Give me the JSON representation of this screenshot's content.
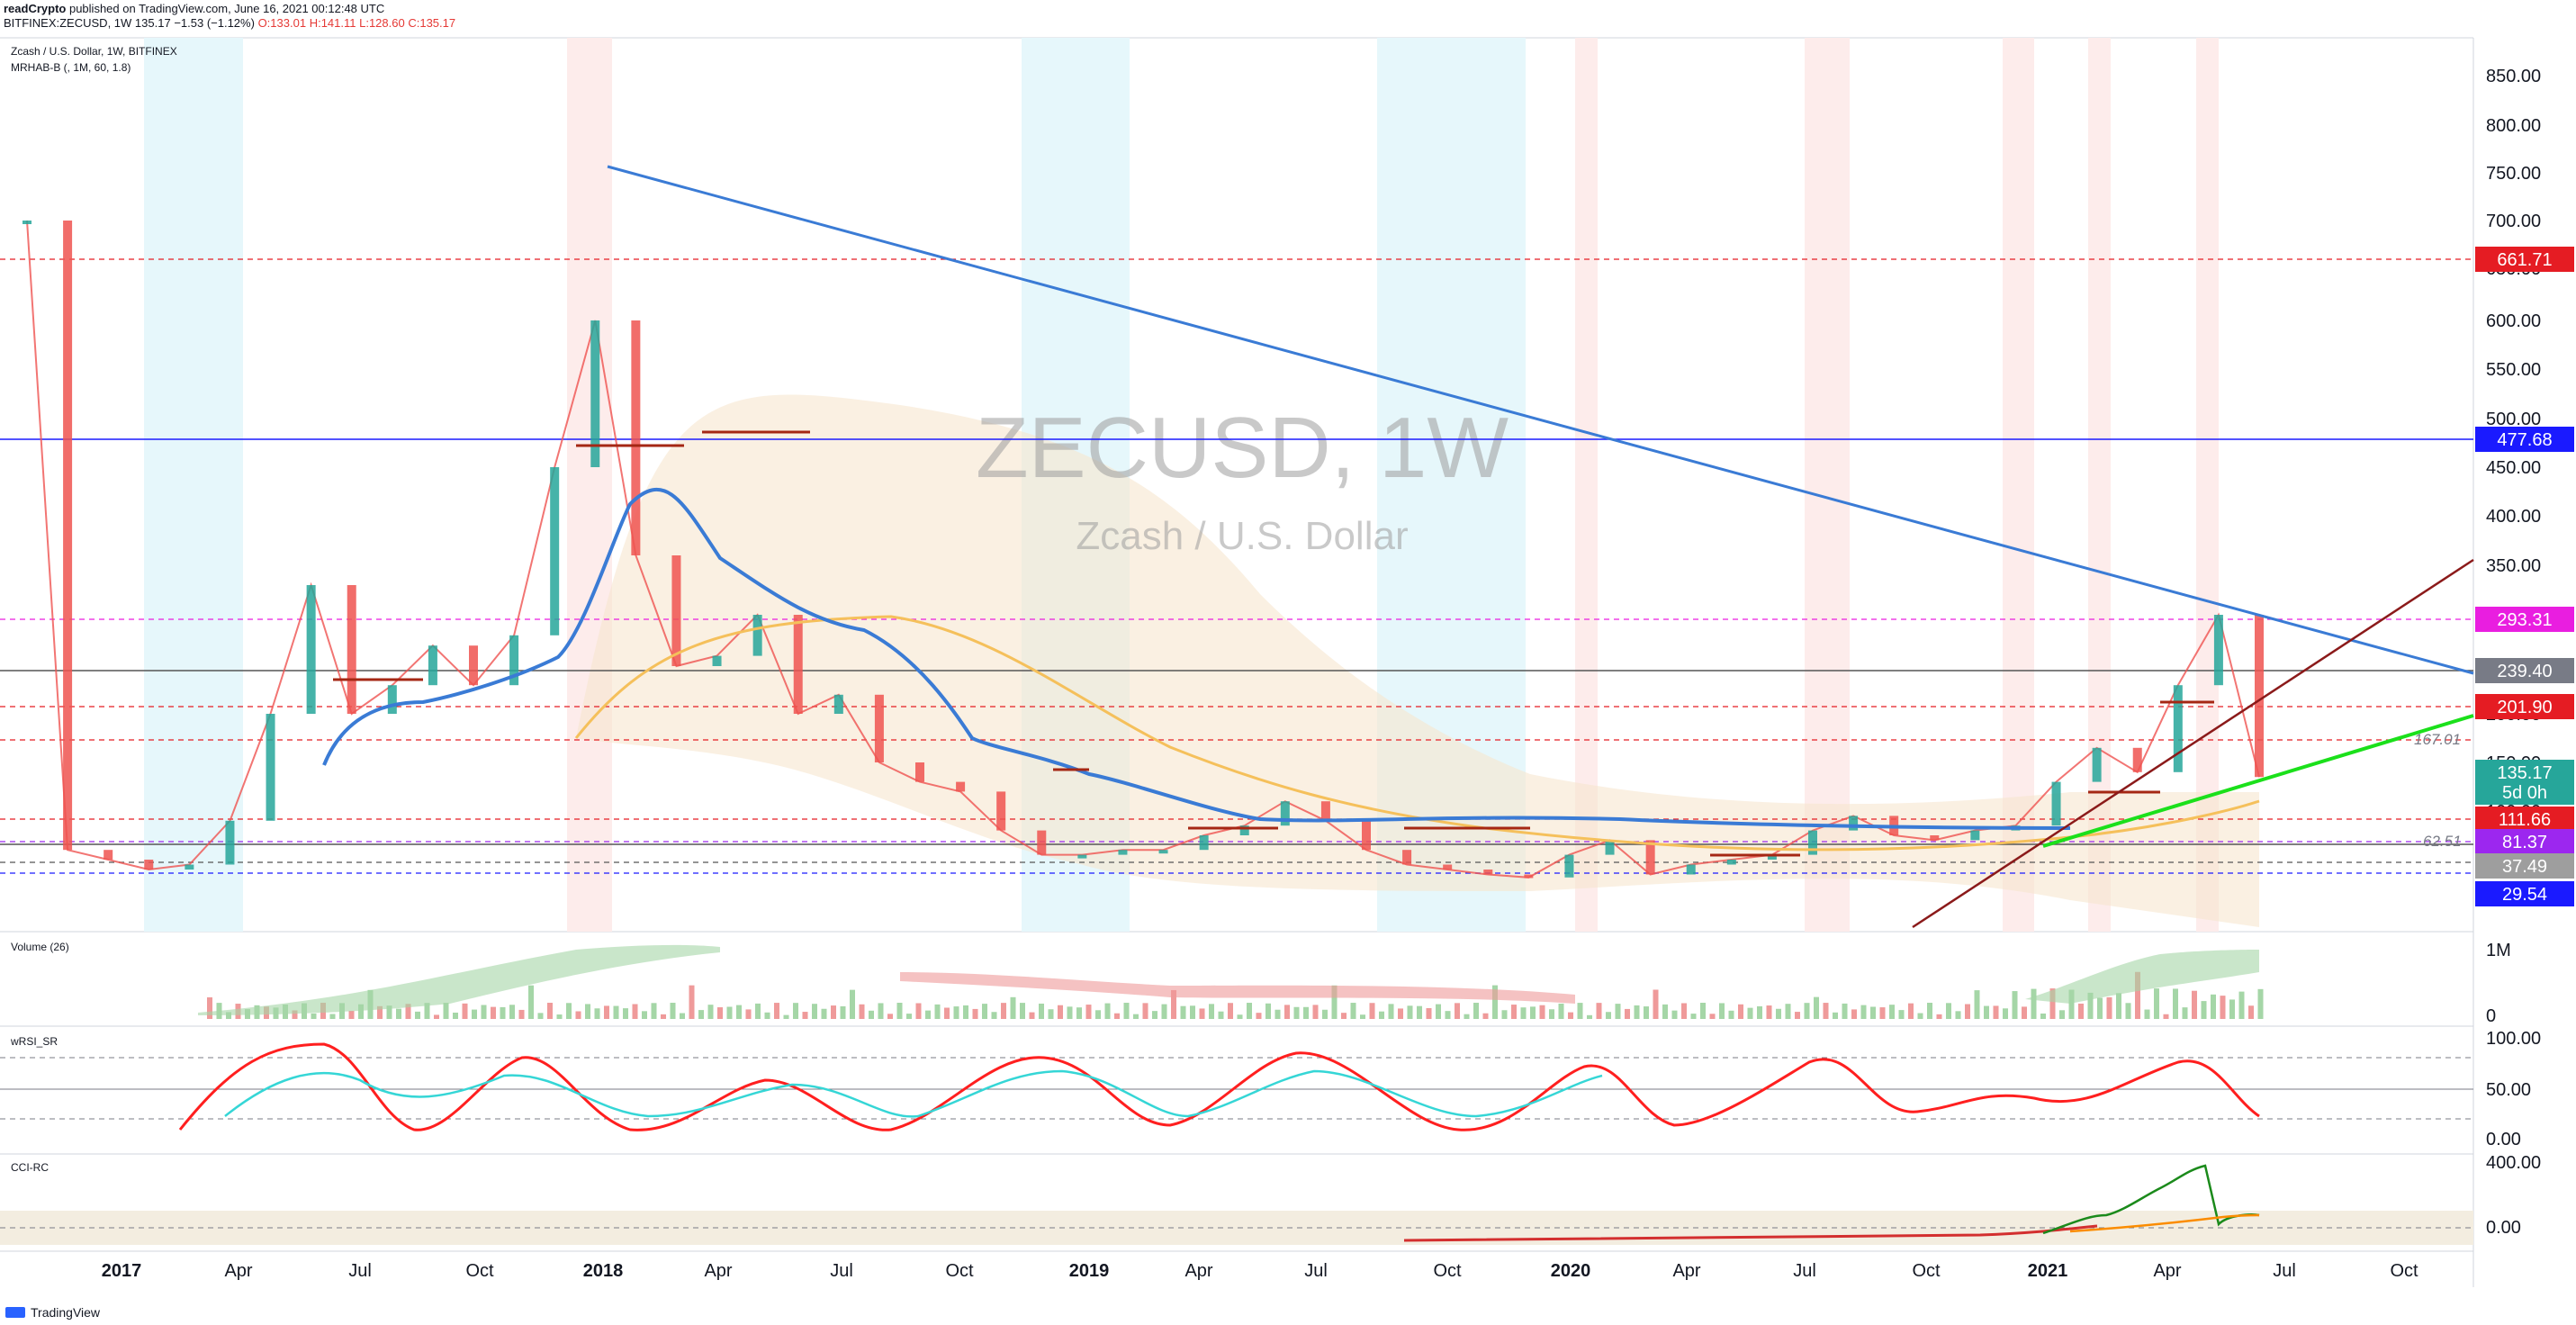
{
  "header": {
    "line1_author": "readCrypto",
    "line1_rest": " published on TradingView.com, June 16, 2021 00:12:48 UTC",
    "line2_symbol": "BITFINEX:ZECUSD, 1W",
    "line2_close": "135.17",
    "line2_change": "−1.53 (−1.12%)",
    "ohlc": {
      "o": "O:133.01",
      "h": "H:141.11",
      "l": "L:128.60",
      "c": "C:135.17"
    }
  },
  "legend": {
    "title": "Zcash / U.S. Dollar, 1W, BITFINEX",
    "indicator": "MRHAB-B (, 1M, 60, 1.8)"
  },
  "watermark": {
    "symbol": "ZECUSD, 1W",
    "name": "Zcash / U.S. Dollar"
  },
  "panes": {
    "volume": "Volume (26)",
    "wrsi": "wRSI_SR",
    "cci": "CCI-RC"
  },
  "footer": {
    "brand": "TradingView"
  },
  "colors": {
    "up": "#26a69a",
    "down": "#ef5350",
    "blue_line": "#3a7bd5",
    "red_line": "#d32f2f",
    "green_line": "#1be01b",
    "orange_line": "#f5c05b",
    "dark_red": "#8b1a1a"
  },
  "chart_data": {
    "type": "line",
    "title": "ZECUSD, 1W",
    "subtitle": "Zcash / U.S. Dollar",
    "x_ticks": [
      "2017",
      "Apr",
      "Jul",
      "Oct",
      "2018",
      "Apr",
      "Jul",
      "Oct",
      "2019",
      "Apr",
      "Jul",
      "Oct",
      "2020",
      "Apr",
      "Jul",
      "Oct",
      "2021",
      "Apr",
      "Jul",
      "Oct"
    ],
    "y_ticks": [
      "850.00",
      "800.00",
      "750.00",
      "700.00",
      "650.00",
      "600.00",
      "550.00",
      "500.00",
      "450.00",
      "400.00",
      "350.00",
      "300.00",
      "250.00",
      "200.00",
      "150.00",
      "100.00",
      "50.00"
    ],
    "price_labels": [
      {
        "value": "661.71",
        "color": "#e51c23"
      },
      {
        "value": "477.68",
        "color": "#1a1aff"
      },
      {
        "value": "293.31",
        "color": "#e91ee0"
      },
      {
        "value": "239.40",
        "color": "#787b86"
      },
      {
        "value": "201.90",
        "color": "#e51c23"
      },
      {
        "value": "135.17",
        "color": "#26a69a"
      },
      {
        "value": "5d 0h",
        "color": "#26a69a"
      },
      {
        "value": "111.66",
        "color": "#e51c23"
      },
      {
        "value": "81.37",
        "color": "#9c27ef"
      },
      {
        "value": "37.49",
        "color": "#9e9e9e"
      },
      {
        "value": "29.54",
        "color": "#1a1aff"
      }
    ],
    "inline_labels": [
      "167.01",
      "62.51"
    ],
    "horizontal_levels": [
      661.71,
      477.68,
      293.31,
      239.4,
      201.9,
      167.01,
      111.66,
      81.37,
      62.51,
      37.49,
      29.54
    ],
    "series": [
      {
        "values": [
          [
            "2016-11",
            700
          ],
          [
            "2016-12",
            60
          ],
          [
            "2017-01",
            50
          ],
          [
            "2017-02",
            40
          ],
          [
            "2017-03",
            45
          ],
          [
            "2017-04",
            90
          ],
          [
            "2017-05",
            200
          ],
          [
            "2017-06",
            330
          ],
          [
            "2017-07",
            200
          ],
          [
            "2017-08",
            230
          ],
          [
            "2017-09",
            270
          ],
          [
            "2017-10",
            230
          ],
          [
            "2017-11",
            280
          ],
          [
            "2017-12",
            450
          ],
          [
            "2018-01",
            600
          ],
          [
            "2018-02",
            360
          ],
          [
            "2018-03",
            250
          ],
          [
            "2018-04",
            260
          ],
          [
            "2018-05",
            300
          ],
          [
            "2018-06",
            200
          ],
          [
            "2018-07",
            220
          ],
          [
            "2018-08",
            150
          ],
          [
            "2018-09",
            130
          ],
          [
            "2018-10",
            120
          ],
          [
            "2018-11",
            80
          ],
          [
            "2018-12",
            55
          ],
          [
            "2019-01",
            55
          ],
          [
            "2019-02",
            60
          ],
          [
            "2019-03",
            60
          ],
          [
            "2019-04",
            75
          ],
          [
            "2019-05",
            85
          ],
          [
            "2019-06",
            110
          ],
          [
            "2019-07",
            90
          ],
          [
            "2019-08",
            60
          ],
          [
            "2019-09",
            45
          ],
          [
            "2019-10",
            40
          ],
          [
            "2019-11",
            35
          ],
          [
            "2019-12",
            32
          ],
          [
            "2020-01",
            55
          ],
          [
            "2020-02",
            70
          ],
          [
            "2020-03",
            35
          ],
          [
            "2020-04",
            45
          ],
          [
            "2020-05",
            50
          ],
          [
            "2020-06",
            55
          ],
          [
            "2020-07",
            80
          ],
          [
            "2020-08",
            95
          ],
          [
            "2020-09",
            75
          ],
          [
            "2020-10",
            70
          ],
          [
            "2020-11",
            80
          ],
          [
            "2020-12",
            85
          ],
          [
            "2021-01",
            130
          ],
          [
            "2021-02",
            165
          ],
          [
            "2021-03",
            140
          ],
          [
            "2021-04",
            230
          ],
          [
            "2021-05",
            300
          ],
          [
            "2021-06",
            135
          ]
        ]
      }
    ],
    "volume_ticks": [
      "1M",
      "0"
    ],
    "wrsi_ticks": [
      "100.00",
      "50.00",
      "0.00"
    ],
    "cci_ticks": [
      "400.00",
      "0.00"
    ],
    "grid": false,
    "legend": "top-left"
  }
}
